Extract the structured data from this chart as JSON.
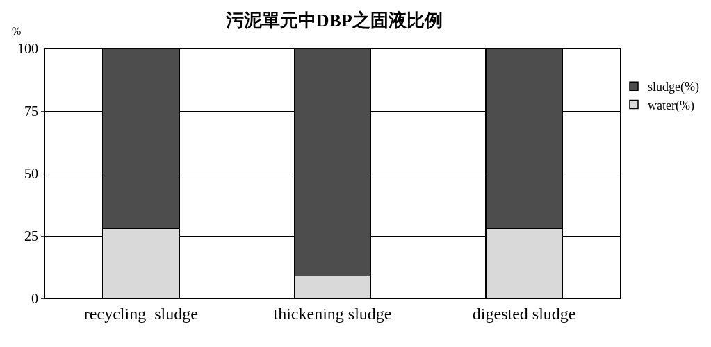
{
  "chart_data": {
    "type": "bar",
    "title": "污泥單元中DBP之固液比例",
    "ylabel": "%",
    "categories": [
      "recycling  sludge",
      "thickening sludge",
      "digested sludge"
    ],
    "stacked": true,
    "series": [
      {
        "name": "water(%)",
        "color": "#d9d9d9",
        "values": [
          28,
          9,
          28
        ]
      },
      {
        "name": "sludge(%)",
        "color": "#4d4d4d",
        "values": [
          72,
          91,
          72
        ]
      }
    ],
    "ylim": [
      0,
      100
    ],
    "yticks": [
      0,
      25,
      50,
      75,
      100
    ],
    "grid": "y",
    "legend": "right"
  }
}
